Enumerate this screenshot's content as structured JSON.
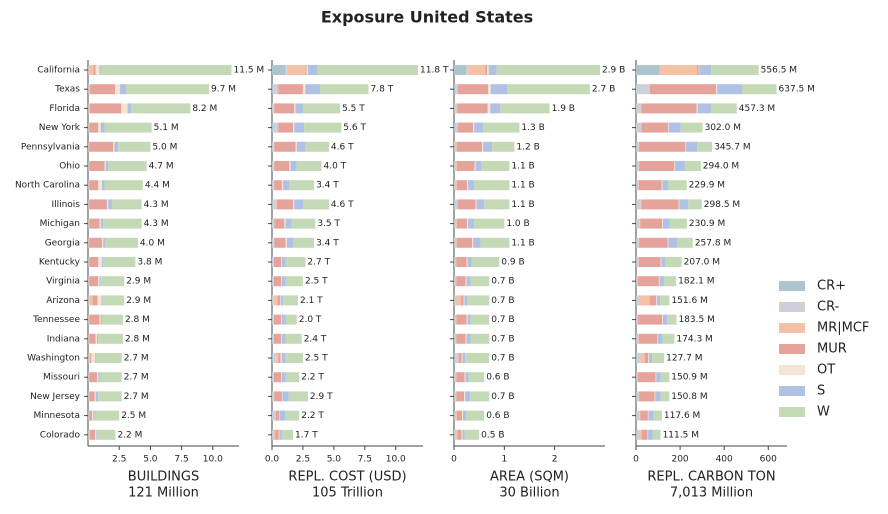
{
  "chart_data": {
    "type": "bar",
    "orientation": "horizontal",
    "stacked": true,
    "title": "Exposure United States",
    "legend_loc": "center right",
    "categories": [
      "California",
      "Texas",
      "Florida",
      "New York",
      "Pennsylvania",
      "Ohio",
      "North Carolina",
      "Illinois",
      "Michigan",
      "Georgia",
      "Kentucky",
      "Virginia",
      "Arizona",
      "Tennessee",
      "Indiana",
      "Washington",
      "Missouri",
      "New Jersey",
      "Minnesota",
      "Colorado"
    ],
    "segments": [
      {
        "name": "CR+",
        "color": "#abc4cd"
      },
      {
        "name": "CR-",
        "color": "#cdd0d9"
      },
      {
        "name": "MR|MCF",
        "color": "#f4c2a4"
      },
      {
        "name": "MUR",
        "color": "#e6a39c"
      },
      {
        "name": "OT",
        "color": "#f3e4d5"
      },
      {
        "name": "S",
        "color": "#afc1e5"
      },
      {
        "name": "W",
        "color": "#c4d9b5"
      }
    ],
    "panels": [
      {
        "xlabel": "BUILDINGS",
        "xsublabel": "121 Million",
        "xlim": [
          0,
          12.1
        ],
        "xticks": [
          2.5,
          {
            "value": 5,
            "label": "5.0"
          },
          7.5,
          {
            "value": 10,
            "label": "10.0"
          }
        ],
        "values": [
          [
            0.02,
            0.05,
            0.35,
            0.2,
            0.3,
            0.1,
            10.48
          ],
          [
            0.02,
            0.05,
            0.1,
            2.0,
            0.4,
            0.5,
            6.63
          ],
          [
            0.02,
            0.05,
            0.1,
            2.5,
            0.5,
            0.3,
            4.73
          ],
          [
            0.02,
            0.05,
            0.05,
            0.7,
            0.2,
            0.3,
            3.78
          ],
          [
            0.02,
            0.05,
            0.05,
            1.9,
            0.1,
            0.3,
            2.58
          ],
          [
            0.02,
            0.05,
            0.05,
            1.2,
            0.1,
            0.2,
            3.08
          ],
          [
            0.02,
            0.05,
            0.05,
            0.7,
            0.3,
            0.2,
            3.08
          ],
          [
            0.02,
            0.05,
            0.05,
            1.4,
            0.1,
            0.3,
            2.38
          ],
          [
            0.02,
            0.05,
            0.05,
            0.8,
            0.1,
            0.2,
            3.08
          ],
          [
            0.02,
            0.05,
            0.05,
            1.0,
            0.1,
            0.2,
            2.58
          ],
          [
            0.02,
            0.05,
            0.05,
            0.7,
            0.3,
            0.1,
            2.58
          ],
          [
            0.02,
            0.05,
            0.05,
            0.7,
            0.1,
            0.1,
            1.88
          ],
          [
            0.02,
            0.05,
            0.3,
            0.4,
            0.3,
            0.1,
            1.73
          ],
          [
            0.02,
            0.05,
            0.05,
            0.8,
            0.1,
            0.1,
            1.68
          ],
          [
            0.02,
            0.05,
            0.05,
            0.5,
            0.1,
            0.1,
            1.98
          ],
          [
            0.02,
            0.05,
            0.1,
            0.1,
            0.3,
            0.1,
            2.03
          ],
          [
            0.02,
            0.05,
            0.05,
            0.6,
            0.1,
            0.1,
            1.78
          ],
          [
            0.02,
            0.05,
            0.05,
            0.4,
            0.1,
            0.2,
            1.88
          ],
          [
            0.02,
            0.05,
            0.05,
            0.2,
            0.1,
            0.1,
            1.98
          ],
          [
            0.02,
            0.05,
            0.1,
            0.4,
            0.1,
            0.1,
            1.43
          ]
        ],
        "value_labels": [
          "11.5 M",
          "9.7 M",
          "8.2 M",
          "5.1 M",
          "5.0 M",
          "4.7 M",
          "4.4 M",
          "4.3 M",
          "4.3 M",
          "4.0 M",
          "3.8 M",
          "2.9 M",
          "2.9 M",
          "2.8 M",
          "2.8 M",
          "2.7 M",
          "2.7 M",
          "2.7 M",
          "2.5 M",
          "2.2 M"
        ]
      },
      {
        "xlabel": "REPL. COST (USD)",
        "xsublabel": "105 Trillion",
        "xlim": [
          0,
          12.2
        ],
        "xticks": [
          {
            "value": 0,
            "label": "0.0"
          },
          2.5,
          {
            "value": 5,
            "label": "5.0"
          },
          7.5,
          {
            "value": 10,
            "label": "10.0"
          }
        ],
        "values": [
          [
            1.1,
            0.1,
            1.5,
            0.1,
            0.1,
            0.8,
            8.1
          ],
          [
            0.1,
            0.3,
            0.1,
            2.0,
            0.2,
            1.2,
            3.9
          ],
          [
            0.05,
            0.1,
            0.05,
            1.6,
            0.1,
            0.6,
            3.0
          ],
          [
            0.1,
            0.3,
            0.1,
            1.2,
            0.1,
            0.8,
            3.0
          ],
          [
            0.05,
            0.1,
            0.05,
            1.7,
            0.1,
            0.7,
            1.9
          ],
          [
            0.05,
            0.1,
            0.05,
            1.2,
            0.1,
            0.5,
            2.0
          ],
          [
            0.05,
            0.1,
            0.05,
            0.6,
            0.1,
            0.5,
            2.0
          ],
          [
            0.1,
            0.2,
            0.1,
            1.3,
            0.1,
            0.7,
            2.1
          ],
          [
            0.05,
            0.1,
            0.05,
            0.8,
            0.1,
            0.5,
            1.9
          ],
          [
            0.05,
            0.1,
            0.05,
            0.9,
            0.1,
            0.5,
            1.7
          ],
          [
            0.05,
            0.05,
            0.05,
            0.6,
            0.05,
            0.3,
            1.6
          ],
          [
            0.05,
            0.05,
            0.05,
            0.6,
            0.05,
            0.3,
            1.4
          ],
          [
            0.05,
            0.1,
            0.3,
            0.2,
            0.05,
            0.2,
            1.2
          ],
          [
            0.05,
            0.05,
            0.05,
            0.6,
            0.05,
            0.3,
            0.9
          ],
          [
            0.05,
            0.05,
            0.05,
            0.6,
            0.05,
            0.3,
            1.3
          ],
          [
            0.1,
            0.2,
            0.2,
            0.2,
            0.1,
            0.3,
            1.4
          ],
          [
            0.05,
            0.05,
            0.05,
            0.6,
            0.05,
            0.3,
            1.1
          ],
          [
            0.05,
            0.1,
            0.05,
            0.6,
            0.05,
            0.5,
            1.55
          ],
          [
            0.05,
            0.2,
            0.05,
            0.3,
            0.05,
            0.4,
            1.15
          ],
          [
            0.05,
            0.1,
            0.1,
            0.3,
            0.05,
            0.2,
            0.9
          ]
        ],
        "value_labels": [
          "11.8 T",
          "7.8 T",
          "5.5 T",
          "5.6 T",
          "4.6 T",
          "4.0 T",
          "3.4 T",
          "4.6 T",
          "3.5 T",
          "3.4 T",
          "2.7 T",
          "2.5 T",
          "2.1 T",
          "2.0 T",
          "2.4 T",
          "2.5 T",
          "2.2 T",
          "2.9 T",
          "2.2 T",
          "1.7 T"
        ]
      },
      {
        "xlabel": "AREA (SQM)",
        "xsublabel": "30 Billion",
        "xlim": [
          0,
          3.0
        ],
        "xticks": [
          0,
          1,
          2
        ],
        "values": [
          [
            0.24,
            0.02,
            0.36,
            0.04,
            0.03,
            0.16,
            2.05
          ],
          [
            0.02,
            0.06,
            0.0,
            0.6,
            0.05,
            0.33,
            1.64
          ],
          [
            0.01,
            0.04,
            0.02,
            0.6,
            0.05,
            0.2,
            0.98
          ],
          [
            0.02,
            0.04,
            0.02,
            0.3,
            0.02,
            0.18,
            0.72
          ],
          [
            0.01,
            0.03,
            0.02,
            0.5,
            0.02,
            0.18,
            0.44
          ],
          [
            0.01,
            0.03,
            0.02,
            0.35,
            0.02,
            0.12,
            0.55
          ],
          [
            0.01,
            0.03,
            0.02,
            0.2,
            0.02,
            0.12,
            0.7
          ],
          [
            0.01,
            0.05,
            0.02,
            0.35,
            0.02,
            0.15,
            0.5
          ],
          [
            0.01,
            0.03,
            0.02,
            0.2,
            0.02,
            0.12,
            0.6
          ],
          [
            0.01,
            0.03,
            0.02,
            0.3,
            0.02,
            0.15,
            0.57
          ],
          [
            0.01,
            0.02,
            0.02,
            0.2,
            0.02,
            0.08,
            0.55
          ],
          [
            0.01,
            0.02,
            0.02,
            0.18,
            0.02,
            0.08,
            0.37
          ],
          [
            0.01,
            0.03,
            0.1,
            0.05,
            0.02,
            0.05,
            0.44
          ],
          [
            0.01,
            0.02,
            0.02,
            0.2,
            0.02,
            0.06,
            0.37
          ],
          [
            0.01,
            0.02,
            0.02,
            0.18,
            0.02,
            0.08,
            0.37
          ],
          [
            0.02,
            0.05,
            0.03,
            0.05,
            0.02,
            0.05,
            0.48
          ],
          [
            0.01,
            0.02,
            0.02,
            0.16,
            0.02,
            0.06,
            0.31
          ],
          [
            0.01,
            0.02,
            0.02,
            0.15,
            0.02,
            0.1,
            0.38
          ],
          [
            0.01,
            0.03,
            0.02,
            0.1,
            0.02,
            0.06,
            0.36
          ],
          [
            0.01,
            0.02,
            0.04,
            0.08,
            0.02,
            0.04,
            0.29
          ]
        ],
        "value_labels": [
          "2.9 B",
          "2.7 B",
          "1.9 B",
          "1.3 B",
          "1.2 B",
          "1.1 B",
          "1.1 B",
          "1.1 B",
          "1.0 B",
          "1.1 B",
          "0.9 B",
          "0.7 B",
          "0.7 B",
          "0.7 B",
          "0.7 B",
          "0.7 B",
          "0.6 B",
          "0.7 B",
          "0.6 B",
          "0.5 B"
        ]
      },
      {
        "xlabel": "REPL. CARBON TON",
        "xsublabel": "7,013 Million",
        "xlim": [
          0,
          685
        ],
        "xticks": [
          0,
          200,
          400,
          600
        ],
        "values": [
          [
            108,
            1,
            167,
            9,
            2,
            54,
            215.5
          ],
          [
            3,
            60,
            0,
            300,
            5,
            113,
            156.5
          ],
          [
            3,
            20,
            2,
            250,
            5,
            60,
            117.3
          ],
          [
            3,
            20,
            2,
            120,
            3,
            55,
            99
          ],
          [
            2,
            10,
            2,
            210,
            3,
            50,
            68.7
          ],
          [
            2,
            10,
            2,
            160,
            3,
            45,
            72
          ],
          [
            2,
            8,
            2,
            105,
            3,
            25,
            84.9
          ],
          [
            2,
            20,
            2,
            170,
            3,
            40,
            61.5
          ],
          [
            2,
            15,
            2,
            100,
            3,
            30,
            78.9
          ],
          [
            2,
            10,
            2,
            130,
            3,
            40,
            70.8
          ],
          [
            2,
            8,
            2,
            100,
            3,
            20,
            72
          ],
          [
            2,
            5,
            2,
            95,
            3,
            20,
            55.1
          ],
          [
            2,
            10,
            50,
            30,
            3,
            15,
            41.6
          ],
          [
            2,
            5,
            2,
            110,
            3,
            20,
            41.5
          ],
          [
            2,
            8,
            2,
            85,
            3,
            20,
            54.3
          ],
          [
            5,
            15,
            20,
            15,
            3,
            15,
            54.7
          ],
          [
            2,
            5,
            2,
            80,
            3,
            20,
            38.9
          ],
          [
            2,
            10,
            2,
            70,
            3,
            25,
            38.8
          ],
          [
            2,
            15,
            2,
            35,
            3,
            20,
            40.6
          ],
          [
            2,
            10,
            15,
            25,
            3,
            20,
            36.5
          ]
        ],
        "value_labels": [
          "556.5 M",
          "637.5 M",
          "457.3 M",
          "302.0 M",
          "345.7 M",
          "294.0 M",
          "229.9 M",
          "298.5 M",
          "230.9 M",
          "257.8 M",
          "207.0 M",
          "182.1 M",
          "151.6 M",
          "183.5 M",
          "174.3 M",
          "127.7 M",
          "150.9 M",
          "150.8 M",
          "117.6 M",
          "111.5 M"
        ]
      }
    ]
  }
}
